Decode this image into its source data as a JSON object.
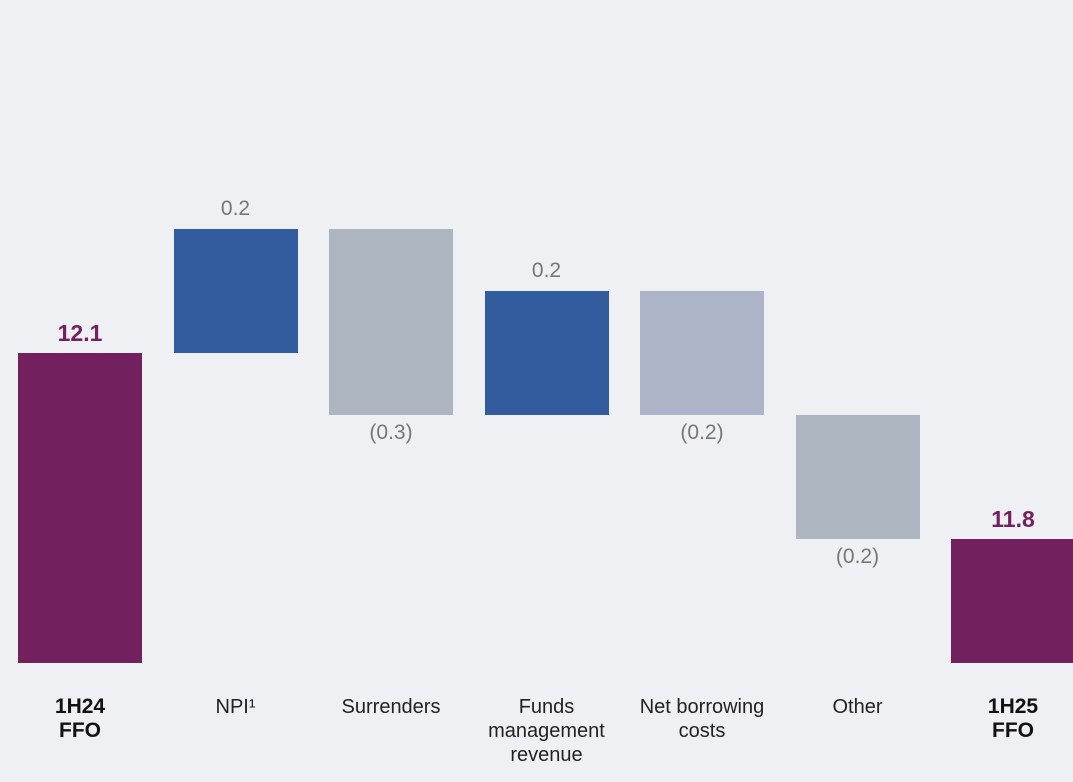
{
  "chart_data": {
    "type": "waterfall",
    "categories": [
      "1H24 FFO",
      "NPI¹",
      "Surrenders",
      "Funds management revenue",
      "Net borrowing costs",
      "Other",
      "1H25 FFO"
    ],
    "values": [
      12.1,
      0.2,
      -0.3,
      0.2,
      -0.2,
      -0.2,
      11.8
    ],
    "value_labels": [
      "12.1",
      "0.2",
      "(0.3)",
      "0.2",
      "(0.2)",
      "(0.2)",
      "11.8"
    ],
    "colors": [
      "#73205f",
      "#335c9e",
      "#adb5c1",
      "#335c9e",
      "#aeb4c8",
      "#adb5c1",
      "#73205f"
    ],
    "ylim": [
      11.6,
      12.6
    ]
  }
}
